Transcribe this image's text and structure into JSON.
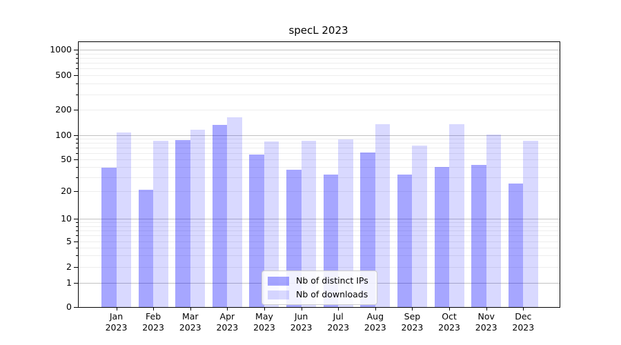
{
  "chart_data": {
    "type": "bar",
    "title": "specL 2023",
    "categories": [
      "Jan",
      "Feb",
      "Mar",
      "Apr",
      "May",
      "Jun",
      "Jul",
      "Aug",
      "Sep",
      "Oct",
      "Nov",
      "Dec"
    ],
    "category_year": "2023",
    "series": [
      {
        "name": "Nb of distinct IPs",
        "color": "rgba(0,0,255,0.35)",
        "color_hex_on_white": "#a6a6ff",
        "values": [
          39,
          21,
          87,
          133,
          58,
          37,
          32,
          61,
          32,
          40,
          43,
          25
        ]
      },
      {
        "name": "Nb of downloads",
        "color": "rgba(0,0,255,0.15)",
        "color_hex_on_white": "#d9d9ff",
        "values": [
          107,
          85,
          117,
          163,
          84,
          85,
          88,
          136,
          74,
          136,
          102,
          86
        ]
      }
    ],
    "xlabel": "",
    "ylabel": "",
    "y_ticks": [
      0,
      1,
      2,
      5,
      10,
      20,
      50,
      100,
      200,
      500,
      1000
    ],
    "y_major_gridlines": [
      1,
      10,
      100,
      1000
    ],
    "axis_scale": "symlog-like (log above 1, linear 0-1)",
    "ylim": [
      0,
      1230
    ],
    "grid": true,
    "legend_position": "lower center inside plot"
  },
  "colors": {
    "major_grid": "#c2c2c2",
    "minor_grid": "#ededed",
    "axis_frame": "#000000",
    "background": "#ffffff"
  }
}
